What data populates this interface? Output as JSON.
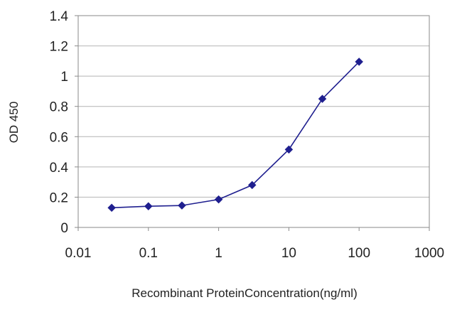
{
  "chart_data": {
    "type": "line",
    "title": "",
    "xlabel": "Recombinant ProteinConcentration(ng/ml)",
    "ylabel": "OD 450",
    "x_scale": "log",
    "xlim": [
      0.01,
      1000
    ],
    "ylim": [
      0,
      1.4
    ],
    "x_ticks": [
      0.01,
      0.1,
      1,
      10,
      100,
      1000
    ],
    "x_tick_labels": [
      "0.01",
      "0.1",
      "1",
      "10",
      "100",
      "1000"
    ],
    "y_ticks": [
      0,
      0.2,
      0.4,
      0.6,
      0.8,
      1,
      1.2,
      1.4
    ],
    "y_tick_labels": [
      "0",
      "0.2",
      "0.4",
      "0.6",
      "0.8",
      "1",
      "1.2",
      "1.4"
    ],
    "grid": "horizontal",
    "legend": "none",
    "series": [
      {
        "color": "#1f1f8f",
        "marker": "diamond",
        "x": [
          0.03,
          0.1,
          0.3,
          1,
          3,
          10,
          30,
          100
        ],
        "y": [
          0.13,
          0.14,
          0.145,
          0.185,
          0.28,
          0.515,
          0.85,
          1.095
        ]
      }
    ]
  }
}
